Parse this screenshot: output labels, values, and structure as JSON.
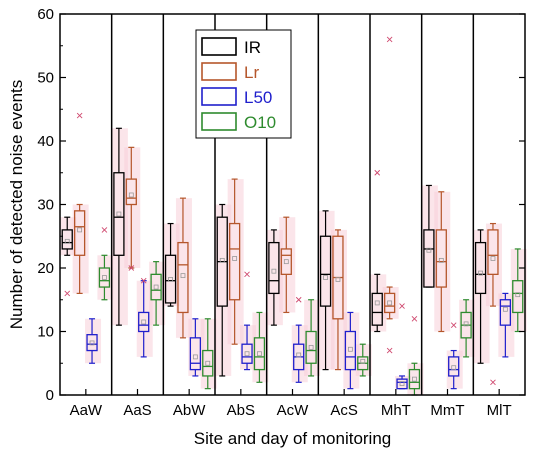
{
  "chart_data": {
    "type": "box",
    "xlabel": "Site and day of monitoring",
    "ylabel": "Number of detected noise events",
    "ylim": [
      0,
      60
    ],
    "yticks": [
      0,
      10,
      20,
      30,
      40,
      50,
      60
    ],
    "categories": [
      "AaW",
      "AaS",
      "AbW",
      "AbS",
      "AcW",
      "AcS",
      "MhT",
      "MmT",
      "MlT"
    ],
    "legend": {
      "placement": "top-center"
    },
    "series": [
      {
        "name": "IR",
        "color": "#000000",
        "boxes": [
          {
            "min": 22,
            "q1": 23,
            "median": 24,
            "q3": 26,
            "max": 28,
            "mean": 24.2,
            "outliers": [
              16
            ]
          },
          {
            "min": 11,
            "q1": 22,
            "median": 28,
            "q3": 35,
            "max": 42,
            "mean": 28.5,
            "outliers": []
          },
          {
            "min": 14,
            "q1": 14.5,
            "median": 18,
            "q3": 22,
            "max": 27,
            "mean": 18.2,
            "outliers": []
          },
          {
            "min": 3,
            "q1": 14,
            "median": 21,
            "q3": 28,
            "max": 30,
            "mean": 21.2,
            "outliers": []
          },
          {
            "min": 11,
            "q1": 16,
            "median": 18,
            "q3": 24,
            "max": 26,
            "mean": 19.5,
            "outliers": []
          },
          {
            "min": 4,
            "q1": 14,
            "median": 19,
            "q3": 25,
            "max": 29,
            "mean": 18.5,
            "outliers": []
          },
          {
            "min": 10,
            "q1": 11,
            "median": 13,
            "q3": 16,
            "max": 19,
            "mean": 14.5,
            "outliers": [
              35
            ]
          },
          {
            "min": 17,
            "q1": 17,
            "median": 23,
            "q3": 26,
            "max": 33,
            "mean": 22.8,
            "outliers": []
          },
          {
            "min": 5,
            "q1": 16,
            "median": 19,
            "q3": 24,
            "max": 26,
            "mean": 19.2,
            "outliers": []
          }
        ]
      },
      {
        "name": "Lr",
        "color": "#b5562b",
        "boxes": [
          {
            "min": 16,
            "q1": 22,
            "median": 26.5,
            "q3": 29,
            "max": 30,
            "mean": 26,
            "outliers": [
              44
            ]
          },
          {
            "min": 20,
            "q1": 30,
            "median": 31,
            "q3": 34,
            "max": 39,
            "mean": 31.5,
            "outliers": [
              20
            ]
          },
          {
            "min": 9,
            "q1": 13,
            "median": 20.5,
            "q3": 24,
            "max": 31,
            "mean": 18.8,
            "outliers": []
          },
          {
            "min": 8,
            "q1": 15,
            "median": 23,
            "q3": 27,
            "max": 34,
            "mean": 21.5,
            "outliers": []
          },
          {
            "min": 13,
            "q1": 19,
            "median": 22,
            "q3": 23,
            "max": 28,
            "mean": 21,
            "outliers": []
          },
          {
            "min": 4,
            "q1": 12,
            "median": 18.5,
            "q3": 25,
            "max": 26,
            "mean": 18.2,
            "outliers": []
          },
          {
            "min": 12,
            "q1": 13,
            "median": 14,
            "q3": 16,
            "max": 17,
            "mean": 14.5,
            "outliers": [
              56,
              7
            ]
          },
          {
            "min": 10,
            "q1": 17,
            "median": 21,
            "q3": 26,
            "max": 32,
            "mean": 21.2,
            "outliers": []
          },
          {
            "min": 14,
            "q1": 19,
            "median": 22,
            "q3": 26,
            "max": 27,
            "mean": 21.5,
            "outliers": [
              2
            ]
          }
        ]
      },
      {
        "name": "L50",
        "color": "#1f1fcc",
        "boxes": [
          {
            "min": 5,
            "q1": 7,
            "median": 8,
            "q3": 9.5,
            "max": 12,
            "mean": 8.2,
            "outliers": []
          },
          {
            "min": 6,
            "q1": 10,
            "median": 11,
            "q3": 13,
            "max": 18,
            "mean": 11.5,
            "outliers": [
              18
            ]
          },
          {
            "min": 3,
            "q1": 4,
            "median": 5,
            "q3": 9,
            "max": 12,
            "mean": 6,
            "outliers": []
          },
          {
            "min": 4,
            "q1": 5,
            "median": 6,
            "q3": 8,
            "max": 11,
            "mean": 6.5,
            "outliers": [
              19
            ]
          },
          {
            "min": 2,
            "q1": 4,
            "median": 6,
            "q3": 8,
            "max": 11,
            "mean": 6.3,
            "outliers": [
              15
            ]
          },
          {
            "min": 1,
            "q1": 4,
            "median": 6,
            "q3": 10,
            "max": 13,
            "mean": 7.2,
            "outliers": []
          },
          {
            "min": 1,
            "q1": 1,
            "median": 2,
            "q3": 2.5,
            "max": 3,
            "mean": 1.8,
            "outliers": [
              14
            ]
          },
          {
            "min": 1,
            "q1": 3,
            "median": 4,
            "q3": 6,
            "max": 7,
            "mean": 4.3,
            "outliers": [
              11
            ]
          },
          {
            "min": 6,
            "q1": 11,
            "median": 14,
            "q3": 15,
            "max": 16,
            "mean": 13.5,
            "outliers": []
          }
        ]
      },
      {
        "name": "O10",
        "color": "#2e8b2e",
        "boxes": [
          {
            "min": 15,
            "q1": 17,
            "median": 18,
            "q3": 20,
            "max": 22,
            "mean": 18.5,
            "outliers": [
              26
            ]
          },
          {
            "min": 11,
            "q1": 15,
            "median": 16.5,
            "q3": 19,
            "max": 21,
            "mean": 17,
            "outliers": []
          },
          {
            "min": 1,
            "q1": 3,
            "median": 4.5,
            "q3": 7,
            "max": 12,
            "mean": 5,
            "outliers": []
          },
          {
            "min": 2,
            "q1": 4,
            "median": 6,
            "q3": 9,
            "max": 13,
            "mean": 6.5,
            "outliers": []
          },
          {
            "min": 3,
            "q1": 5,
            "median": 7,
            "q3": 10,
            "max": 15,
            "mean": 7.5,
            "outliers": []
          },
          {
            "min": 3,
            "q1": 4,
            "median": 5,
            "q3": 6,
            "max": 8,
            "mean": 5.3,
            "outliers": []
          },
          {
            "min": 0,
            "q1": 1,
            "median": 2,
            "q3": 4,
            "max": 5,
            "mean": 2.5,
            "outliers": [
              12
            ]
          },
          {
            "min": 6,
            "q1": 9,
            "median": 11,
            "q3": 13,
            "max": 15,
            "mean": 11.2,
            "outliers": []
          },
          {
            "min": 10,
            "q1": 13,
            "median": 16,
            "q3": 18,
            "max": 23,
            "mean": 15.8,
            "outliers": []
          }
        ]
      }
    ]
  }
}
